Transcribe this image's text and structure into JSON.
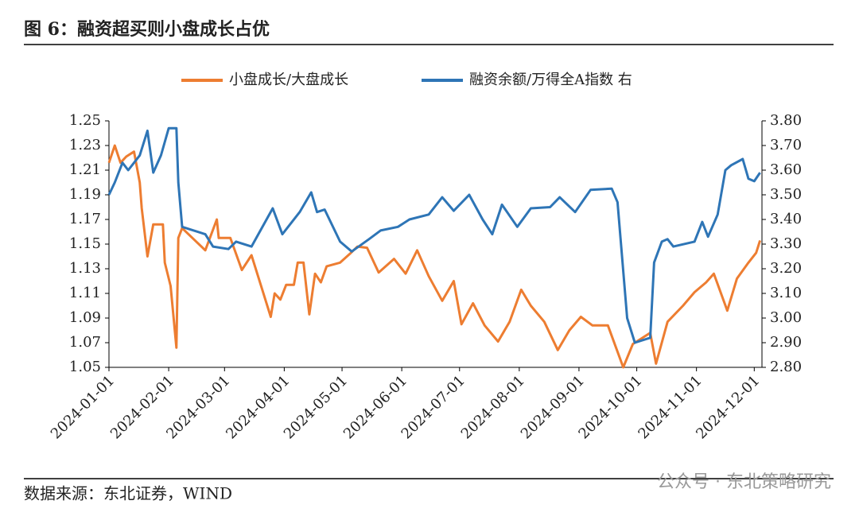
{
  "title": "图 6：融资超买则小盘成长占优",
  "source": "数据来源：东北证券，WIND",
  "watermark": "公众号 · 东北策略研究",
  "chart_data": {
    "type": "line",
    "xlim": [
      "2024-01-01",
      "2024-12-05"
    ],
    "xticks": [
      "2024-01-01",
      "2024-02-01",
      "2024-03-01",
      "2024-04-01",
      "2024-05-01",
      "2024-06-01",
      "2024-07-01",
      "2024-08-01",
      "2024-09-01",
      "2024-10-01",
      "2024-11-01",
      "2024-12-01"
    ],
    "ylim": [
      1.05,
      1.25
    ],
    "yticks": [
      {
        "value": 1.05,
        "label": "1.05"
      },
      {
        "value": 1.07,
        "label": "1.07"
      },
      {
        "value": 1.09,
        "label": "1.09"
      },
      {
        "value": 1.11,
        "label": "1.11"
      },
      {
        "value": 1.13,
        "label": "1.13"
      },
      {
        "value": 1.15,
        "label": "1.15"
      },
      {
        "value": 1.17,
        "label": "1.17"
      },
      {
        "value": 1.19,
        "label": "1.19"
      },
      {
        "value": 1.21,
        "label": "1.21"
      },
      {
        "value": 1.23,
        "label": "1.23"
      },
      {
        "value": 1.25,
        "label": "1.25"
      }
    ],
    "y2lim": [
      2.8,
      3.8
    ],
    "y2ticks": [
      {
        "value": 2.8,
        "label": "2.80"
      },
      {
        "value": 2.9,
        "label": "2.90"
      },
      {
        "value": 3.0,
        "label": "3.00"
      },
      {
        "value": 3.1,
        "label": "3.10"
      },
      {
        "value": 3.2,
        "label": "3.20"
      },
      {
        "value": 3.3,
        "label": "3.30"
      },
      {
        "value": 3.4,
        "label": "3.40"
      },
      {
        "value": 3.5,
        "label": "3.50"
      },
      {
        "value": 3.6,
        "label": "3.60"
      },
      {
        "value": 3.7,
        "label": "3.70"
      },
      {
        "value": 3.8,
        "label": "3.80"
      }
    ],
    "series": [
      {
        "name": "小盘成长/大盘成长",
        "color": "#ed7d31",
        "x": [
          "2024-01-01",
          "2024-01-04",
          "2024-01-07",
          "2024-01-10",
          "2024-01-14",
          "2024-01-17",
          "2024-01-18",
          "2024-01-21",
          "2024-01-24",
          "2024-01-29",
          "2024-01-30",
          "2024-02-02",
          "2024-02-05",
          "2024-02-06",
          "2024-02-08",
          "2024-02-20",
          "2024-02-26",
          "2024-02-27",
          "2024-03-04",
          "2024-03-10",
          "2024-03-15",
          "2024-03-20",
          "2024-03-25",
          "2024-03-27",
          "2024-03-30",
          "2024-04-02",
          "2024-04-06",
          "2024-04-08",
          "2024-04-11",
          "2024-04-14",
          "2024-04-17",
          "2024-04-20",
          "2024-04-23",
          "2024-04-30",
          "2024-05-05",
          "2024-05-09",
          "2024-05-14",
          "2024-05-20",
          "2024-05-28",
          "2024-06-03",
          "2024-06-09",
          "2024-06-15",
          "2024-06-22",
          "2024-06-28",
          "2024-07-02",
          "2024-07-08",
          "2024-07-14",
          "2024-07-21",
          "2024-07-27",
          "2024-08-02",
          "2024-08-07",
          "2024-08-14",
          "2024-08-21",
          "2024-08-27",
          "2024-09-02",
          "2024-09-08",
          "2024-09-16",
          "2024-09-24",
          "2024-09-29",
          "2024-10-08",
          "2024-10-11",
          "2024-10-17",
          "2024-10-25",
          "2024-10-31",
          "2024-11-06",
          "2024-11-10",
          "2024-11-17",
          "2024-11-22",
          "2024-11-28",
          "2024-12-02",
          "2024-12-04"
        ],
        "values": [
          1.216,
          1.23,
          1.216,
          1.221,
          1.225,
          1.2,
          1.179,
          1.14,
          1.166,
          1.166,
          1.135,
          1.116,
          1.066,
          1.155,
          1.163,
          1.145,
          1.17,
          1.155,
          1.155,
          1.129,
          1.141,
          1.116,
          1.091,
          1.11,
          1.105,
          1.117,
          1.117,
          1.135,
          1.135,
          1.093,
          1.126,
          1.119,
          1.132,
          1.135,
          1.142,
          1.148,
          1.147,
          1.127,
          1.138,
          1.126,
          1.145,
          1.124,
          1.104,
          1.12,
          1.085,
          1.102,
          1.084,
          1.071,
          1.087,
          1.113,
          1.1,
          1.087,
          1.064,
          1.08,
          1.091,
          1.084,
          1.084,
          1.05,
          1.069,
          1.078,
          1.053,
          1.087,
          1.1,
          1.111,
          1.119,
          1.126,
          1.096,
          1.122,
          1.135,
          1.143,
          1.153
        ]
      },
      {
        "name": "融资余额/万得全A指数 右",
        "color": "#2e75b6",
        "axis": "y2",
        "x": [
          "2024-01-01",
          "2024-01-04",
          "2024-01-08",
          "2024-01-11",
          "2024-01-14",
          "2024-01-17",
          "2024-01-21",
          "2024-01-24",
          "2024-01-28",
          "2024-02-01",
          "2024-02-05",
          "2024-02-06",
          "2024-02-08",
          "2024-02-20",
          "2024-02-24",
          "2024-03-03",
          "2024-03-07",
          "2024-03-15",
          "2024-03-26",
          "2024-03-31",
          "2024-04-09",
          "2024-04-15",
          "2024-04-18",
          "2024-04-22",
          "2024-04-30",
          "2024-05-06",
          "2024-05-15",
          "2024-05-21",
          "2024-05-30",
          "2024-06-05",
          "2024-06-15",
          "2024-06-22",
          "2024-06-28",
          "2024-07-06",
          "2024-07-13",
          "2024-07-18",
          "2024-07-23",
          "2024-07-31",
          "2024-08-07",
          "2024-08-17",
          "2024-08-22",
          "2024-08-30",
          "2024-09-07",
          "2024-09-18",
          "2024-09-21",
          "2024-09-26",
          "2024-09-30",
          "2024-10-08",
          "2024-10-10",
          "2024-10-14",
          "2024-10-17",
          "2024-10-20",
          "2024-10-31",
          "2024-11-04",
          "2024-11-07",
          "2024-11-12",
          "2024-11-16",
          "2024-11-19",
          "2024-11-25",
          "2024-11-28",
          "2024-12-01",
          "2024-12-04"
        ],
        "values": [
          3.5,
          3.55,
          3.63,
          3.6,
          3.63,
          3.66,
          3.76,
          3.59,
          3.66,
          3.77,
          3.77,
          3.55,
          3.37,
          3.34,
          3.29,
          3.28,
          3.31,
          3.29,
          3.445,
          3.34,
          3.43,
          3.51,
          3.43,
          3.44,
          3.31,
          3.27,
          3.32,
          3.355,
          3.37,
          3.4,
          3.42,
          3.49,
          3.435,
          3.5,
          3.4,
          3.34,
          3.46,
          3.37,
          3.445,
          3.45,
          3.49,
          3.43,
          3.52,
          3.525,
          3.47,
          3.0,
          2.9,
          2.92,
          3.225,
          3.31,
          3.32,
          3.29,
          3.31,
          3.39,
          3.33,
          3.42,
          3.6,
          3.62,
          3.645,
          3.565,
          3.555,
          3.59
        ]
      }
    ]
  }
}
